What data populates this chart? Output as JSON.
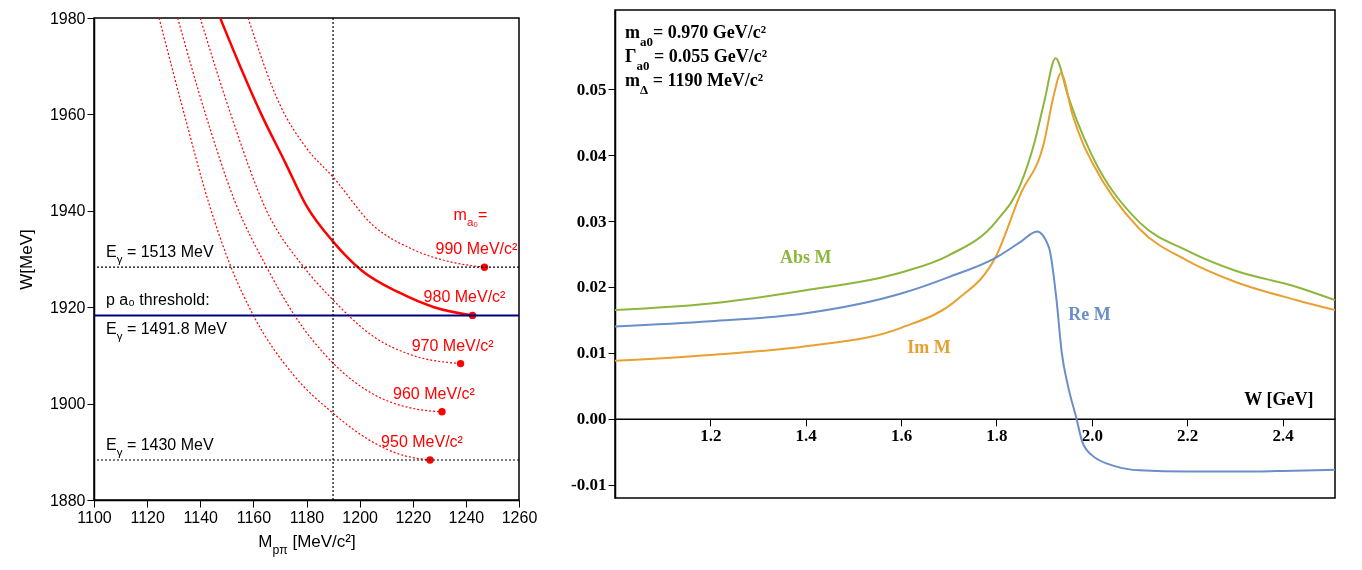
{
  "chart_data": [
    {
      "type": "line",
      "xlabel": "M$_{pπ}$ [MeV/c²]",
      "ylabel": "W[MeV]",
      "xlim": [
        1100,
        1260
      ],
      "xticks": [
        1100,
        1120,
        1140,
        1160,
        1180,
        1200,
        1220,
        1240,
        1260
      ],
      "ylim": [
        1880,
        1980
      ],
      "yticks": [
        1880,
        1900,
        1920,
        1940,
        1960,
        1980
      ],
      "grid": false,
      "legend": false,
      "series": [
        {
          "name": "990 MeV/c²",
          "color": "#ff0000",
          "line_style": "dotted",
          "x": [
            1158,
            1170,
            1180,
            1190,
            1205,
            1220,
            1235,
            1247
          ],
          "values": [
            1980,
            1962,
            1953,
            1947,
            1937,
            1932,
            1929.3,
            1928.3
          ]
        },
        {
          "name": "980 MeV/c²",
          "color": "#ff0000",
          "line_style": "solid",
          "x": [
            1147.5,
            1155,
            1163,
            1172,
            1180,
            1190,
            1201,
            1215,
            1228,
            1242.5
          ],
          "values": [
            1980,
            1970,
            1960,
            1950,
            1941,
            1933.6,
            1927.5,
            1923,
            1920,
            1918.3
          ]
        },
        {
          "name": "970 MeV/c²",
          "color": "#ff0000",
          "line_style": "dotted",
          "x": [
            1140,
            1151.5,
            1165,
            1179,
            1190,
            1205,
            1220,
            1238
          ],
          "values": [
            1980,
            1960,
            1940,
            1928.3,
            1921.5,
            1914,
            1910,
            1908.3
          ]
        },
        {
          "name": "960 MeV/c²",
          "color": "#ff0000",
          "line_style": "dotted",
          "x": [
            1131.5,
            1142,
            1153,
            1165,
            1175.5,
            1190,
            1205,
            1220,
            1231
          ],
          "values": [
            1980,
            1960,
            1942,
            1928.3,
            1918.3,
            1908.4,
            1902,
            1899,
            1898.3
          ]
        },
        {
          "name": "950 MeV/c²",
          "color": "#ff0000",
          "line_style": "dotted",
          "x": [
            1124.5,
            1134,
            1143,
            1151.6,
            1160,
            1175,
            1190,
            1205,
            1215,
            1226.5
          ],
          "values": [
            1980,
            1960,
            1942,
            1928.3,
            1918.3,
            1906,
            1898,
            1892,
            1889.5,
            1888.3
          ]
        },
        {
          "type": "scatter",
          "color": "#ff0000",
          "marker": "circle",
          "x": [
            1247,
            1242.5,
            1238,
            1231,
            1226.5
          ],
          "values": [
            1928.3,
            1918.3,
            1908.3,
            1898.3,
            1888.3
          ]
        }
      ],
      "ref_lines": [
        {
          "axis": "y",
          "value": 1928.3,
          "color": "#000000",
          "line_style": "dotted"
        },
        {
          "axis": "y",
          "value": 1918.3,
          "color": "#000080",
          "line_style": "solid"
        },
        {
          "axis": "y",
          "value": 1888.3,
          "color": "#000000",
          "line_style": "dotted"
        },
        {
          "axis": "x",
          "value": 1190,
          "color": "#000000",
          "line_style": "dotted"
        }
      ],
      "annotations": [
        "m$_{a₀}$=",
        "E$_{γ}$ = 1513 MeV",
        "p a₀ threshold:",
        "E$_{γ}$ = 1491.8 MeV",
        "E$_{γ}$ = 1430 MeV"
      ]
    },
    {
      "type": "line",
      "xlabel": "W [GeV]",
      "xlim": [
        1.0,
        2.51
      ],
      "xticks": [
        1.2,
        1.4,
        1.6,
        1.8,
        {
          "value": 2,
          "label": "2.0"
        },
        2.2,
        2.4
      ],
      "ylim": [
        -0.012,
        0.062
      ],
      "yticks": [
        -0.01,
        {
          "value": 0,
          "label": "0.00"
        },
        0.01,
        0.02,
        0.03,
        0.04,
        0.05
      ],
      "grid": false,
      "legend": false,
      "series": [
        {
          "name": "Abs M",
          "color": "#8cb63c",
          "x": [
            1.0,
            1.2,
            1.4,
            1.6,
            1.7,
            1.8,
            1.85,
            1.88,
            1.9,
            1.924,
            1.95,
            1.97,
            2.0,
            2.1,
            2.2,
            2.3,
            2.43,
            2.51
          ],
          "values": [
            0.0165,
            0.0175,
            0.0195,
            0.0222,
            0.0248,
            0.03,
            0.0355,
            0.042,
            0.048,
            0.0547,
            0.049,
            0.045,
            0.04,
            0.0298,
            0.0255,
            0.0225,
            0.02,
            0.018
          ]
        },
        {
          "name": "Im M",
          "color": "#e8a030",
          "x": [
            1.0,
            1.2,
            1.4,
            1.6,
            1.716,
            1.8,
            1.85,
            1.9,
            1.92,
            1.935,
            1.96,
            1.98,
            2.0,
            2.1,
            2.2,
            2.3,
            2.43,
            2.51
          ],
          "values": [
            0.0088,
            0.0097,
            0.011,
            0.0138,
            0.018,
            0.0248,
            0.034,
            0.042,
            0.049,
            0.0524,
            0.046,
            0.042,
            0.039,
            0.0288,
            0.024,
            0.0208,
            0.018,
            0.0165
          ]
        },
        {
          "name": "Re M",
          "color": "#6a8fc8",
          "x": [
            1.0,
            1.2,
            1.4,
            1.6,
            1.7,
            1.8,
            1.85,
            1.885,
            1.91,
            1.926,
            1.937,
            1.95,
            1.968,
            1.98,
            2.0,
            2.05,
            2.1,
            2.2,
            2.3,
            2.4,
            2.51
          ],
          "values": [
            0.014,
            0.0148,
            0.016,
            0.019,
            0.0215,
            0.0245,
            0.0268,
            0.0284,
            0.026,
            0.018,
            0.01,
            0.005,
            0.0,
            -0.0035,
            -0.0055,
            -0.0072,
            -0.0078,
            -0.008,
            -0.008,
            -0.0079,
            -0.0077
          ]
        }
      ],
      "annotations": [
        "m$_{a0}$= 0.970 GeV/c²",
        "Γ$_{a0}$ = 0.055 GeV/c²",
        "m$_{Δ}$ = 1190 MeV/c²"
      ]
    }
  ]
}
